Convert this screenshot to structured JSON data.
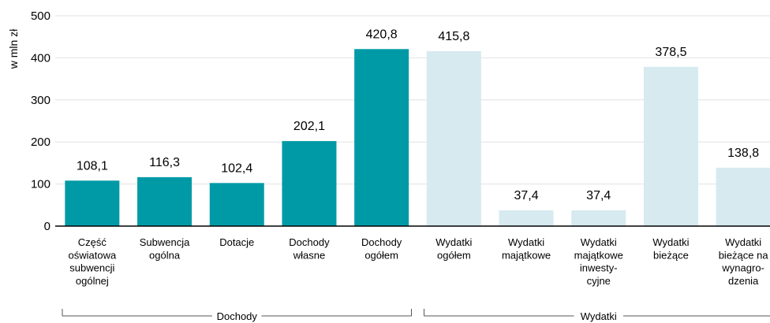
{
  "chart_data": {
    "type": "bar",
    "y_label": "w mln zł",
    "categories": [
      "Część\noświatowa\nsubwencji\nogólnej",
      "Subwencja\nogólna",
      "Dotacje",
      "Dochody\nwłasne",
      "Dochody\nogółem",
      "Wydatki\nogółem",
      "Wydatki\nmajątkowe",
      "Wydatki\nmajątkowe\ninwesty-\ncyjne",
      "Wydatki\nbieżące",
      "Wydatki\nbieżące na\nwynagro-\ndzenia"
    ],
    "series": [
      {
        "name": "Dochody",
        "color": "#009aa6",
        "values": [
          108.1,
          116.3,
          102.4,
          202.1,
          420.8,
          null,
          null,
          null,
          null,
          null
        ],
        "value_labels": [
          "108,1",
          "116,3",
          "102,4",
          "202,1",
          "420,8",
          null,
          null,
          null,
          null,
          null
        ]
      },
      {
        "name": "Wydatki",
        "color": "#d6eaf0",
        "values": [
          null,
          null,
          null,
          null,
          null,
          415.8,
          37.4,
          37.4,
          378.5,
          138.8
        ],
        "value_labels": [
          null,
          null,
          null,
          null,
          null,
          "415,8",
          "37,4",
          "37,4",
          "378,5",
          "138,8"
        ]
      }
    ],
    "ylim": [
      0,
      500
    ],
    "yticks": [
      0,
      100,
      200,
      300,
      400,
      500
    ],
    "grid": true
  }
}
